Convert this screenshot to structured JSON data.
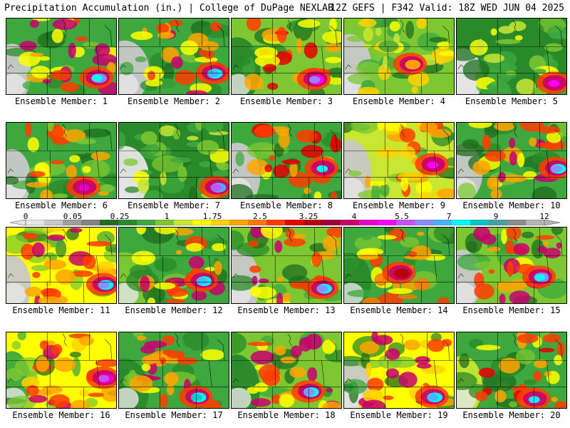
{
  "header": {
    "left": "Precipitation Accumulation (in.) | College of DuPage NEXLAB",
    "right": "12Z GEFS | F342 Valid: 18Z WED JUN 04 2025"
  },
  "colorbar": {
    "labels": [
      "0",
      "0.05",
      "0.25",
      "1",
      "1.75",
      "2.5",
      "3.25",
      "4",
      "5.5",
      "7",
      "9",
      "12"
    ],
    "colors": [
      "#e6e6e6",
      "#c8c8c8",
      "#a0a0a0",
      "#828282",
      "#1f6e1f",
      "#2a8a2a",
      "#3ea83e",
      "#7dc832",
      "#c8e632",
      "#ffff00",
      "#ffd200",
      "#ffa500",
      "#ff7800",
      "#ff3c00",
      "#e60000",
      "#b40000",
      "#a0003c",
      "#c8006e",
      "#e600c8",
      "#ff00ff",
      "#c850ff",
      "#8c8cff",
      "#46b4ff",
      "#00ffff",
      "#00c8c8",
      "#46a0a0",
      "#8c8c8c",
      "#b4b4b4"
    ]
  },
  "members": [
    {
      "label": "Ensemble Member: 1"
    },
    {
      "label": "Ensemble Member: 2"
    },
    {
      "label": "Ensemble Member: 3"
    },
    {
      "label": "Ensemble Member: 4"
    },
    {
      "label": "Ensemble Member: 5"
    },
    {
      "label": "Ensemble Member: 6"
    },
    {
      "label": "Ensemble Member: 7"
    },
    {
      "label": "Ensemble Member: 8"
    },
    {
      "label": "Ensemble Member: 9"
    },
    {
      "label": "Ensemble Member: 10"
    },
    {
      "label": "Ensemble Member: 11"
    },
    {
      "label": "Ensemble Member: 12"
    },
    {
      "label": "Ensemble Member: 13"
    },
    {
      "label": "Ensemble Member: 14"
    },
    {
      "label": "Ensemble Member: 15"
    },
    {
      "label": "Ensemble Member: 16"
    },
    {
      "label": "Ensemble Member: 17"
    },
    {
      "label": "Ensemble Member: 18"
    },
    {
      "label": "Ensemble Member: 19"
    },
    {
      "label": "Ensemble Member: 20"
    }
  ]
}
